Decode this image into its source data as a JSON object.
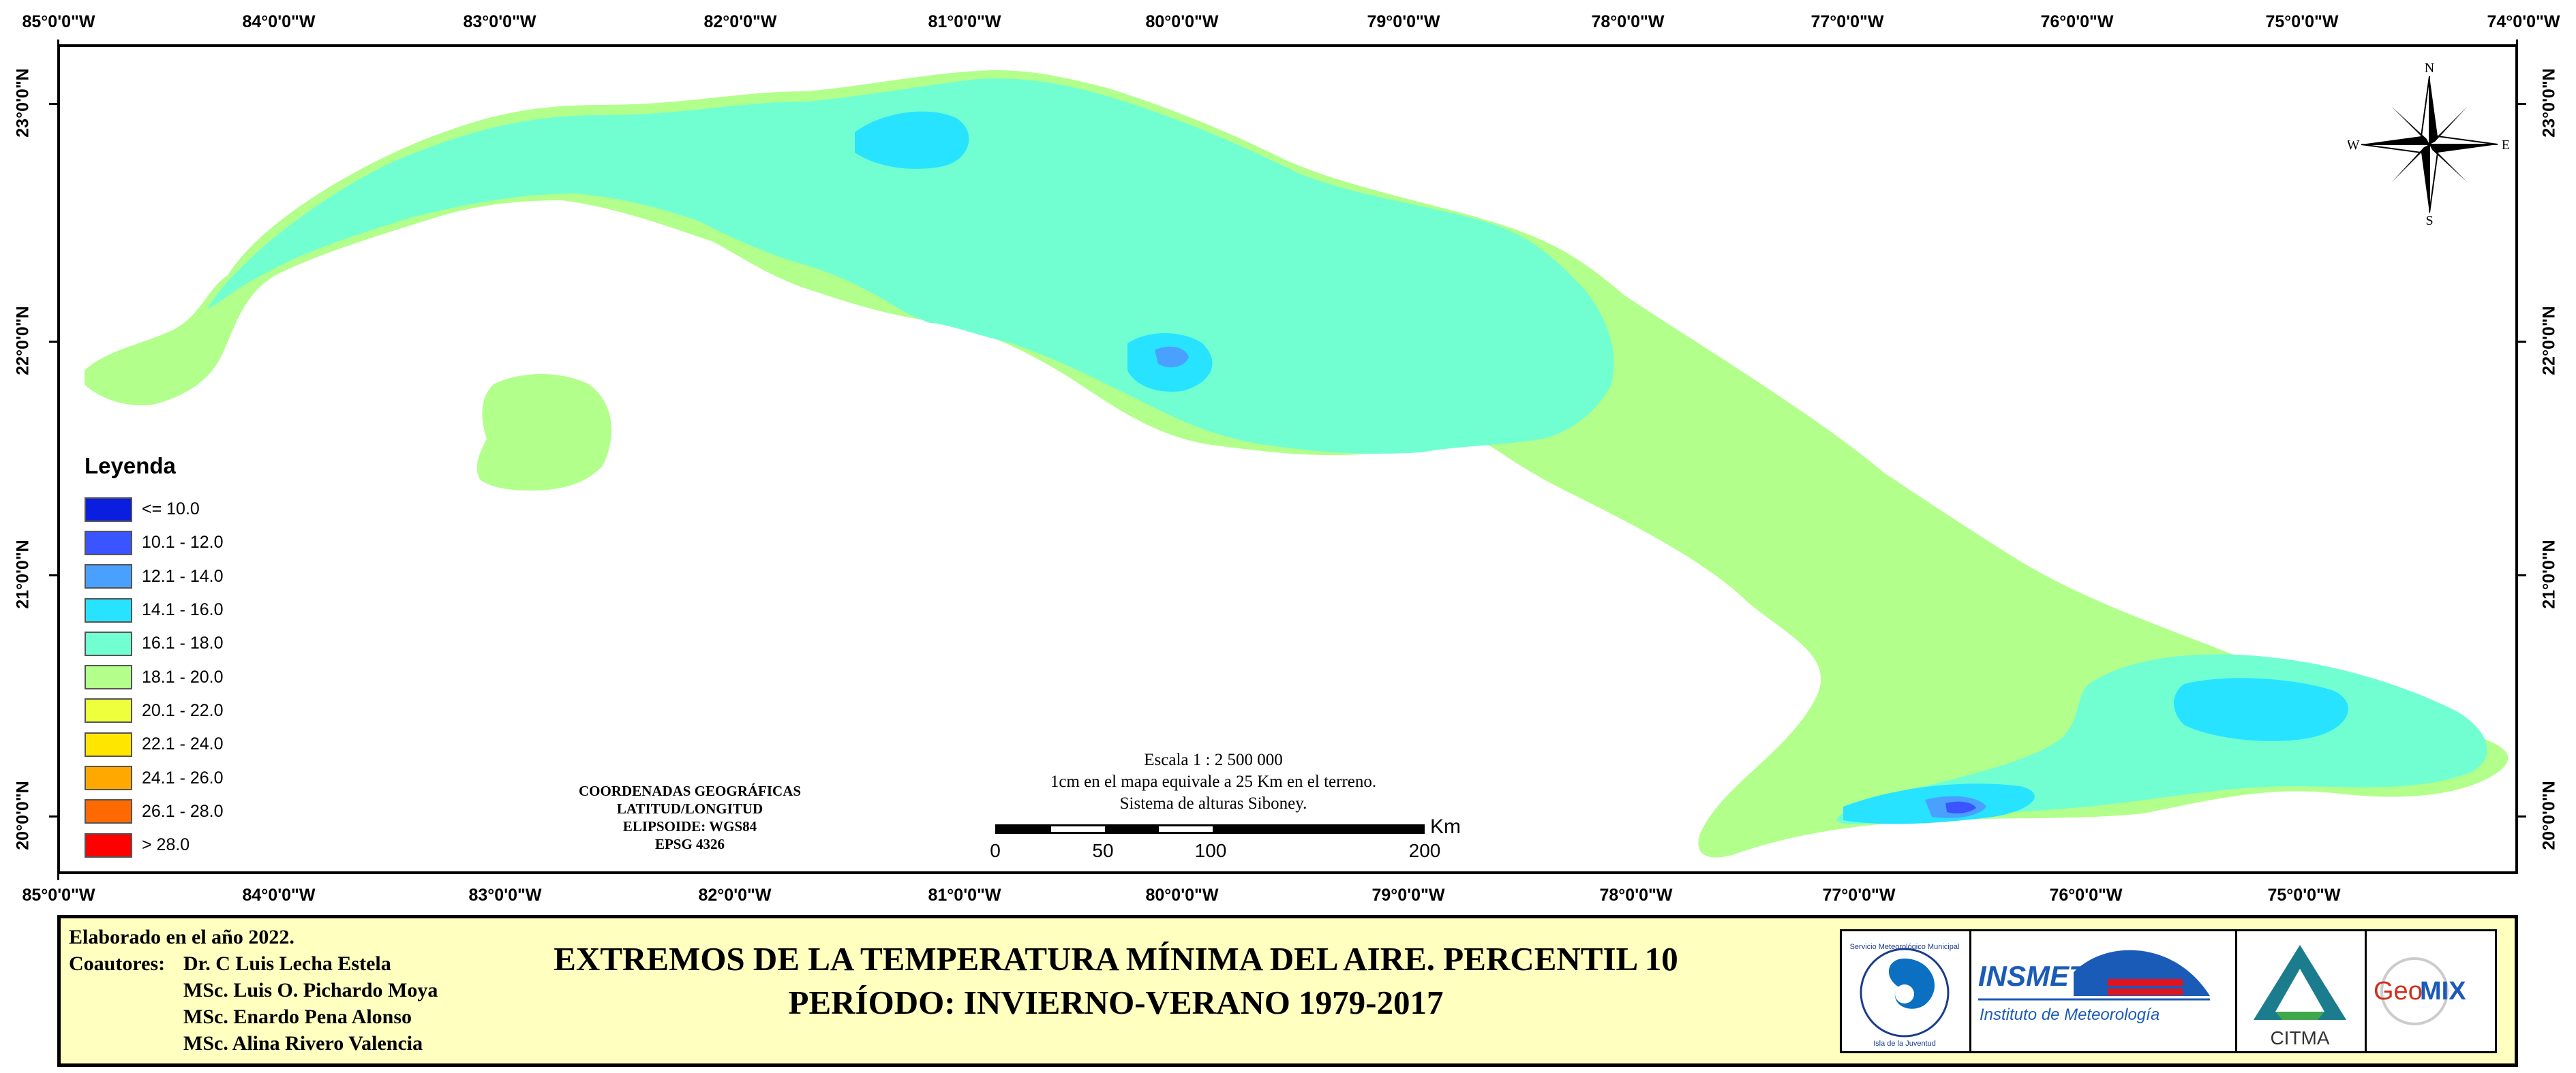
{
  "map": {
    "colors": {
      "class_16_18": "#71ffd2",
      "class_18_20": "#b2ff8c",
      "class_14_16": "#27e3ff",
      "class_12_14": "#4aa0ff",
      "class_10_12": "#3a55ff"
    }
  },
  "graticule": {
    "top_labels": [
      "85°0'0\"W",
      "84°0'0\"W",
      "83°0'0\"W",
      "82°0'0\"W",
      "81°0'0\"W",
      "80°0'0\"W",
      "79°0'0\"W",
      "78°0'0\"W",
      "77°0'0\"W",
      "76°0'0\"W",
      "75°0'0\"W",
      "74°0'0\"W"
    ],
    "bottom_labels": [
      "85°0'0\"W",
      "84°0'0\"W",
      "83°0'0\"W",
      "82°0'0\"W",
      "81°0'0\"W",
      "80°0'0\"W",
      "79°0'0\"W",
      "78°0'0\"W",
      "77°0'0\"W",
      "76°0'0\"W",
      "75°0'0\"W"
    ],
    "left_labels": [
      "23°0'0\"N",
      "22°0'0\"N",
      "21°0'0\"N",
      "20°0'0\"N"
    ],
    "right_labels": [
      "23°0'0\"N",
      "22°0'0\"N",
      "21°0'0\"N",
      "20°0'0\"N"
    ]
  },
  "legend": {
    "title": "Leyenda",
    "items": [
      {
        "label": "<= 10.0",
        "color": "#0a1ee0"
      },
      {
        "label": "10.1 - 12.0",
        "color": "#3a55ff"
      },
      {
        "label": "12.1 - 14.0",
        "color": "#4aa0ff"
      },
      {
        "label": "14.1 - 16.0",
        "color": "#27e3ff"
      },
      {
        "label": "16.1 - 18.0",
        "color": "#71ffd2"
      },
      {
        "label": "18.1 - 20.0",
        "color": "#b2ff8c"
      },
      {
        "label": "20.1 - 22.0",
        "color": "#eeff3c"
      },
      {
        "label": "22.1 - 24.0",
        "color": "#ffe600"
      },
      {
        "label": "24.1 - 26.0",
        "color": "#ffa800"
      },
      {
        "label": "26.1 - 28.0",
        "color": "#ff6a00"
      },
      {
        "label": "> 28.0",
        "color": "#ff0000"
      }
    ]
  },
  "coordinates_block": {
    "line1": "COORDENADAS GEOGRÁFICAS",
    "line2": "LATITUD/LONGITUD",
    "line3": "ELIPSOIDE: WGS84",
    "line4": "EPSG 4326"
  },
  "scale": {
    "line1": "Escala 1 : 2 500 000",
    "line2": "1cm en el mapa equivale a 25 Km en el terreno.",
    "line3": "Sistema de alturas Siboney.",
    "ticks": [
      "0",
      "50",
      "100",
      "200"
    ],
    "unit": "Km"
  },
  "compass": {
    "n": "N",
    "s": "S",
    "e": "E",
    "w": "W"
  },
  "credits": {
    "elaborated": "Elaborado en el año 2022.",
    "coauthors_label": "Coautores:",
    "coauthors": [
      "Dr. C Luis Lecha Estela",
      "MSc. Luis O. Pichardo Moya",
      "MSc. Enardo Pena Alonso",
      "MSc. Alina Rivero Valencia"
    ],
    "title_line1": "EXTREMOS DE LA TEMPERATURA MÍNIMA DEL AIRE. PERCENTIL 10",
    "title_line2": "PERÍODO: INVIERNO-VERANO 1979-2017"
  },
  "logos": {
    "insmet": "INSMET",
    "insmet_sub": "Instituto de Meteorología",
    "citma": "CITMA",
    "geomix_a": "Geo",
    "geomix_b": "MIX",
    "smm_top": "Servicio Meteorológico Municipal",
    "smm_bottom": "Isla de la Juventud"
  }
}
